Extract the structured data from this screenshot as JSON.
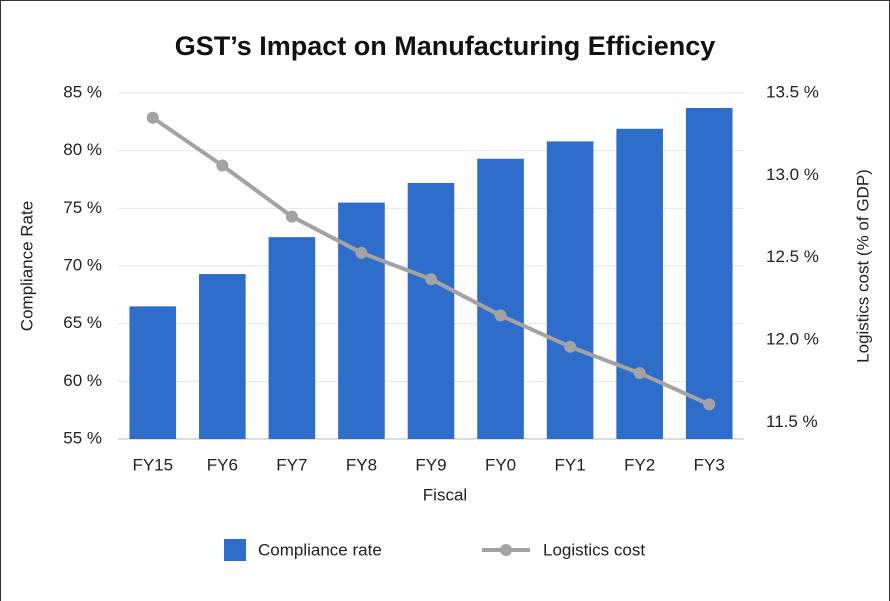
{
  "chart_data": {
    "type": "bar_line",
    "title": "GST’s Impact on Manufacturing Efficiency",
    "x_label": "Fiscal",
    "y_label": "Compliance Rate",
    "y2_label": "Logistics cost (% of GDP)",
    "categories": [
      "FY15",
      "FY6",
      "FY7",
      "FY8",
      "FY9",
      "FY0",
      "FY1",
      "FY2",
      "FY3"
    ],
    "series": [
      {
        "name": "Compliance rate",
        "color": "#2f6dcb",
        "kind": "bar",
        "values": [
          66.5,
          69.3,
          72.5,
          75.5,
          77.2,
          79.3,
          80.8,
          81.9,
          83.7
        ]
      },
      {
        "name": "Logistics cost",
        "color": "#a3a3a3",
        "kind": "line",
        "axis": "y2",
        "values": [
          13.35,
          13.06,
          12.75,
          12.53,
          12.37,
          12.15,
          11.96,
          11.8,
          11.61
        ]
      }
    ],
    "ylim": [
      55,
      85
    ],
    "yticks": [
      {
        "value": 55,
        "label": "55 %"
      },
      {
        "value": 60,
        "label": "60 %"
      },
      {
        "value": 65,
        "label": "65 %"
      },
      {
        "value": 70,
        "label": "70 %"
      },
      {
        "value": 75,
        "label": "75 %"
      },
      {
        "value": 80,
        "label": "80 %"
      },
      {
        "value": 85,
        "label": "85 %"
      }
    ],
    "y2lim": [
      11.4,
      13.5
    ],
    "y2ticks": [
      {
        "value": 11.5,
        "label": "11.5 %"
      },
      {
        "value": 12.0,
        "label": "12.0 %"
      },
      {
        "value": 12.5,
        "label": "12.5 %"
      },
      {
        "value": 13.0,
        "label": "13.0 %"
      },
      {
        "value": 13.5,
        "label": "13.5 %"
      }
    ],
    "grid": true,
    "legend": "bottom"
  }
}
